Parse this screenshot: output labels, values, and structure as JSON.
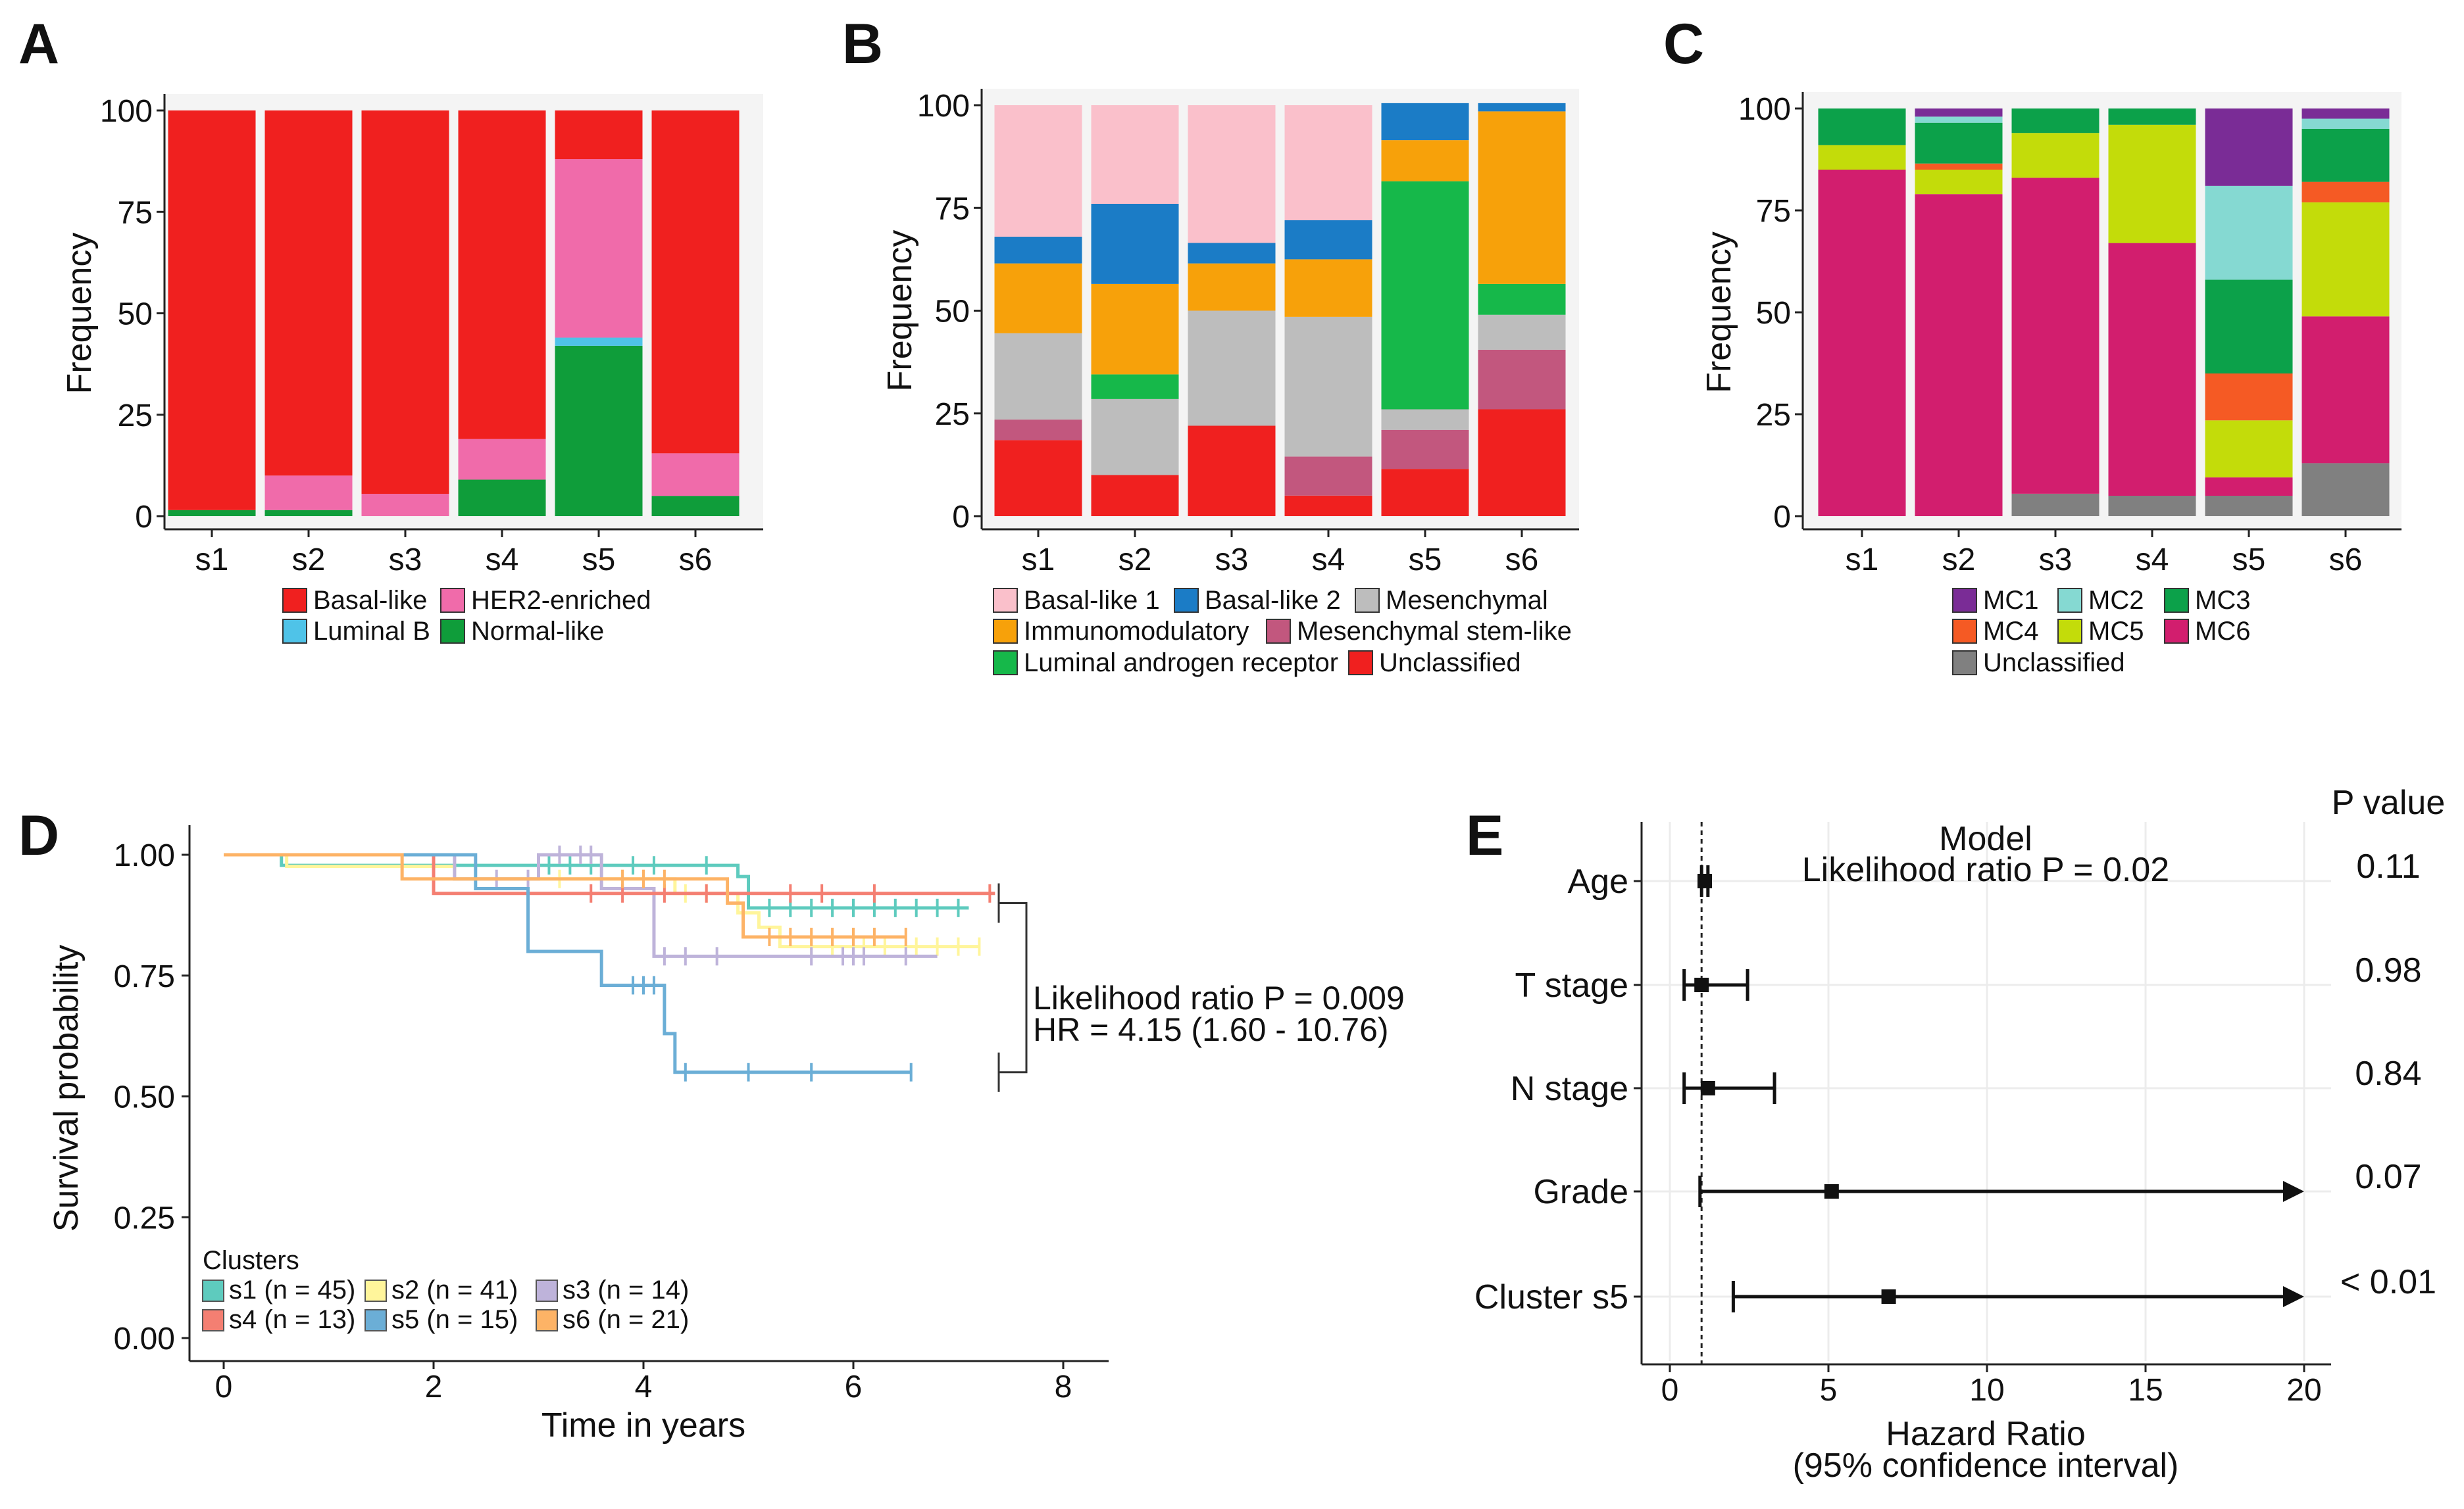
{
  "chart_data": [
    {
      "panel": "A",
      "type": "bar",
      "stacked": true,
      "ylabel": "Frequency",
      "yticks": [
        "0",
        "25",
        "50",
        "75",
        "100"
      ],
      "ylim": [
        0,
        100
      ],
      "categories": [
        "s1",
        "s2",
        "s3",
        "s4",
        "s5",
        "s6"
      ],
      "series": [
        {
          "name": "Normal-like",
          "color": "#0F9D3A",
          "values": [
            1.5,
            1.5,
            0,
            9,
            42,
            5
          ]
        },
        {
          "name": "Luminal B",
          "color": "#4FC3E8",
          "values": [
            0,
            0,
            0,
            0,
            2,
            0
          ]
        },
        {
          "name": "HER2-enriched",
          "color": "#F06BAA",
          "values": [
            0,
            8.5,
            5.5,
            10,
            44,
            10.5
          ]
        },
        {
          "name": "Basal-like",
          "color": "#F0201F",
          "values": [
            98.5,
            90,
            94.5,
            81,
            12,
            84.5
          ]
        }
      ],
      "legend": [
        {
          "name": "Basal-like",
          "color": "#F0201F"
        },
        {
          "name": "HER2-enriched",
          "color": "#F06BAA"
        },
        {
          "name": "Luminal B",
          "color": "#4FC3E8"
        },
        {
          "name": "Normal-like",
          "color": "#0F9D3A"
        }
      ]
    },
    {
      "panel": "B",
      "type": "bar",
      "stacked": true,
      "ylabel": "Frequency",
      "yticks": [
        "0",
        "25",
        "50",
        "75",
        "100"
      ],
      "ylim": [
        0,
        100
      ],
      "categories": [
        "s1",
        "s2",
        "s3",
        "s4",
        "s5",
        "s6"
      ],
      "series": [
        {
          "name": "Unclassified",
          "color": "#F0201F",
          "values": [
            18.5,
            10,
            22,
            5,
            11.5,
            26
          ]
        },
        {
          "name": "Mesenchymal stem-like",
          "color": "#C2577E",
          "values": [
            5,
            0,
            0,
            9.5,
            9.5,
            14.5
          ]
        },
        {
          "name": "Mesenchymal",
          "color": "#BDBDBD",
          "values": [
            21,
            18.5,
            28,
            34,
            5,
            8.5
          ]
        },
        {
          "name": "Luminal androgen receptor",
          "color": "#16B84A",
          "values": [
            0,
            6,
            0,
            0,
            55.5,
            7.5
          ]
        },
        {
          "name": "Immunomodulatory",
          "color": "#F7A10A",
          "values": [
            17,
            22,
            11.5,
            14,
            10,
            42
          ]
        },
        {
          "name": "Basal-like 2",
          "color": "#1B7CC6",
          "values": [
            6.5,
            19.5,
            5,
            9.5,
            9,
            2
          ]
        },
        {
          "name": "Basal-like 1",
          "color": "#FAC0CB",
          "values": [
            32,
            24,
            33.5,
            28,
            0,
            0
          ]
        }
      ],
      "legend": [
        {
          "name": "Basal-like 1",
          "color": "#FAC0CB"
        },
        {
          "name": "Basal-like 2",
          "color": "#1B7CC6"
        },
        {
          "name": "Mesenchymal",
          "color": "#BDBDBD"
        },
        {
          "name": "Immunomodulatory",
          "color": "#F7A10A"
        },
        {
          "name": "Mesenchymal stem-like",
          "color": "#C2577E"
        },
        {
          "name": "Luminal androgen receptor",
          "color": "#16B84A"
        },
        {
          "name": "Unclassified",
          "color": "#F0201F"
        }
      ]
    },
    {
      "panel": "C",
      "type": "bar",
      "stacked": true,
      "ylabel": "Frequency",
      "yticks": [
        "0",
        "25",
        "50",
        "75",
        "100"
      ],
      "ylim": [
        0,
        100
      ],
      "categories": [
        "s1",
        "s2",
        "s3",
        "s4",
        "s5",
        "s6"
      ],
      "series": [
        {
          "name": "Unclassified",
          "color": "#808080",
          "values": [
            0,
            0,
            5.5,
            5,
            5,
            13
          ]
        },
        {
          "name": "MC6",
          "color": "#D21E6E",
          "values": [
            85,
            79,
            77.5,
            62,
            4.5,
            36
          ]
        },
        {
          "name": "MC5",
          "color": "#C3DC0A",
          "values": [
            6,
            6,
            11,
            29,
            14,
            28
          ]
        },
        {
          "name": "MC4",
          "color": "#F55A24",
          "values": [
            0,
            1.5,
            0,
            0,
            11.5,
            5
          ]
        },
        {
          "name": "MC3",
          "color": "#0CA14A",
          "values": [
            9,
            10,
            6,
            4,
            23,
            13
          ]
        },
        {
          "name": "MC2",
          "color": "#85D9D2",
          "values": [
            0,
            1.5,
            0,
            0,
            23,
            2.5
          ]
        },
        {
          "name": "MC1",
          "color": "#7A2C96",
          "values": [
            0,
            2,
            0,
            0,
            19,
            2.5
          ]
        }
      ],
      "legend": [
        {
          "name": "MC1",
          "color": "#7A2C96"
        },
        {
          "name": "MC2",
          "color": "#85D9D2"
        },
        {
          "name": "MC3",
          "color": "#0CA14A"
        },
        {
          "name": "MC4",
          "color": "#F55A24"
        },
        {
          "name": "MC5",
          "color": "#C3DC0A"
        },
        {
          "name": "MC6",
          "color": "#D21E6E"
        },
        {
          "name": "Unclassified",
          "color": "#808080"
        }
      ]
    },
    {
      "panel": "D",
      "type": "line",
      "subtype": "kaplan-meier",
      "xlabel": "Time in years",
      "ylabel": "Survival probability",
      "xlim": [
        0,
        8
      ],
      "ylim": [
        0,
        1
      ],
      "xticks": [
        "0",
        "2",
        "4",
        "6",
        "8"
      ],
      "yticks": [
        "0.00",
        "0.25",
        "0.50",
        "0.75",
        "1.00"
      ],
      "legend_title": "Clusters",
      "annotation_line1": "Likelihood ratio P = 0.009",
      "annotation_line2": "HR = 4.15 (1.60 - 10.76)",
      "bracket_y": [
        0.9,
        0.55
      ],
      "series": [
        {
          "name": "s1 (n = 45)",
          "color": "#5ECBBE",
          "steps": [
            [
              0,
              1.0
            ],
            [
              0.55,
              0.978
            ],
            [
              4.9,
              0.955
            ],
            [
              5.0,
              0.89
            ],
            [
              7.1,
              0.89
            ]
          ],
          "censor": [
            3.1,
            3.3,
            3.5,
            3.9,
            4.1,
            4.6,
            5.2,
            5.4,
            5.6,
            5.8,
            6.0,
            6.2,
            6.4,
            6.6,
            6.8,
            7.0
          ]
        },
        {
          "name": "s2 (n = 41)",
          "color": "#FFF59B",
          "steps": [
            [
              0,
              1.0
            ],
            [
              0.6,
              0.976
            ],
            [
              2.2,
              0.95
            ],
            [
              4.3,
              0.92
            ],
            [
              4.9,
              0.88
            ],
            [
              5.1,
              0.85
            ],
            [
              5.3,
              0.81
            ],
            [
              7.2,
              0.81
            ]
          ],
          "censor": [
            3.2,
            3.6,
            3.8,
            4.0,
            4.4,
            4.6,
            5.6,
            5.8,
            6.1,
            6.3,
            6.6,
            6.8,
            7.0,
            7.2
          ]
        },
        {
          "name": "s3 (n = 14)",
          "color": "#BEB3DA",
          "steps": [
            [
              0,
              1.0
            ],
            [
              2.2,
              0.95
            ],
            [
              3.0,
              1.0
            ],
            [
              3.6,
              0.93
            ],
            [
              4.1,
              0.79
            ],
            [
              6.8,
              0.79
            ]
          ],
          "censor": [
            2.6,
            2.9,
            3.2,
            3.4,
            3.5,
            4.2,
            4.4,
            4.7,
            5.6,
            5.9,
            6.0,
            6.1,
            6.5
          ]
        },
        {
          "name": "s4 (n = 13)",
          "color": "#F47F72",
          "steps": [
            [
              0,
              1.0
            ],
            [
              2.0,
              0.92
            ],
            [
              7.35,
              0.92
            ]
          ],
          "censor": [
            3.5,
            3.8,
            4.2,
            4.6,
            5.4,
            5.7,
            6.2,
            7.3
          ]
        },
        {
          "name": "s5 (n = 15)",
          "color": "#6BAED6",
          "steps": [
            [
              0,
              1.0
            ],
            [
              2.4,
              0.93
            ],
            [
              2.9,
              0.8
            ],
            [
              3.6,
              0.73
            ],
            [
              4.2,
              0.63
            ],
            [
              4.3,
              0.55
            ],
            [
              6.55,
              0.55
            ]
          ],
          "censor": [
            3.9,
            4.0,
            4.1,
            4.4,
            5.0,
            5.6,
            6.55
          ]
        },
        {
          "name": "s6 (n = 21)",
          "color": "#FDB366",
          "steps": [
            [
              0,
              1.0
            ],
            [
              1.7,
              0.95
            ],
            [
              4.8,
              0.9
            ],
            [
              4.95,
              0.83
            ],
            [
              6.5,
              0.83
            ]
          ],
          "censor": [
            3.8,
            4.0,
            4.2,
            5.2,
            5.4,
            5.6,
            5.8,
            6.0,
            6.2,
            6.5
          ]
        }
      ]
    },
    {
      "panel": "E",
      "type": "scatter",
      "subtype": "forest",
      "xlabel_line1": "Hazard Ratio",
      "xlabel_line2": "(95% confidence interval)",
      "xlim": [
        -0.5,
        20.5
      ],
      "xticks": [
        0,
        5,
        10,
        15,
        20
      ],
      "reference_line": 1,
      "pvalue_header": "P value",
      "model_title": "Model",
      "model_subtitle": "Likelihood ratio P = 0.02",
      "rows": [
        {
          "label": "Age",
          "hr": 1.1,
          "low": 1.0,
          "high": 1.2,
          "p": "0.11",
          "arrow": false
        },
        {
          "label": "T stage",
          "hr": 1.0,
          "low": 0.45,
          "high": 2.45,
          "p": "0.98",
          "arrow": false
        },
        {
          "label": "N stage",
          "hr": 1.2,
          "low": 0.45,
          "high": 3.3,
          "p": "0.84",
          "arrow": false
        },
        {
          "label": "Grade",
          "hr": 5.1,
          "low": 0.95,
          "high": 20,
          "p": "0.07",
          "arrow": true
        },
        {
          "label": "Cluster s5",
          "hr": 6.9,
          "low": 2.0,
          "high": 20,
          "p": "< 0.01",
          "arrow": true
        }
      ]
    }
  ]
}
